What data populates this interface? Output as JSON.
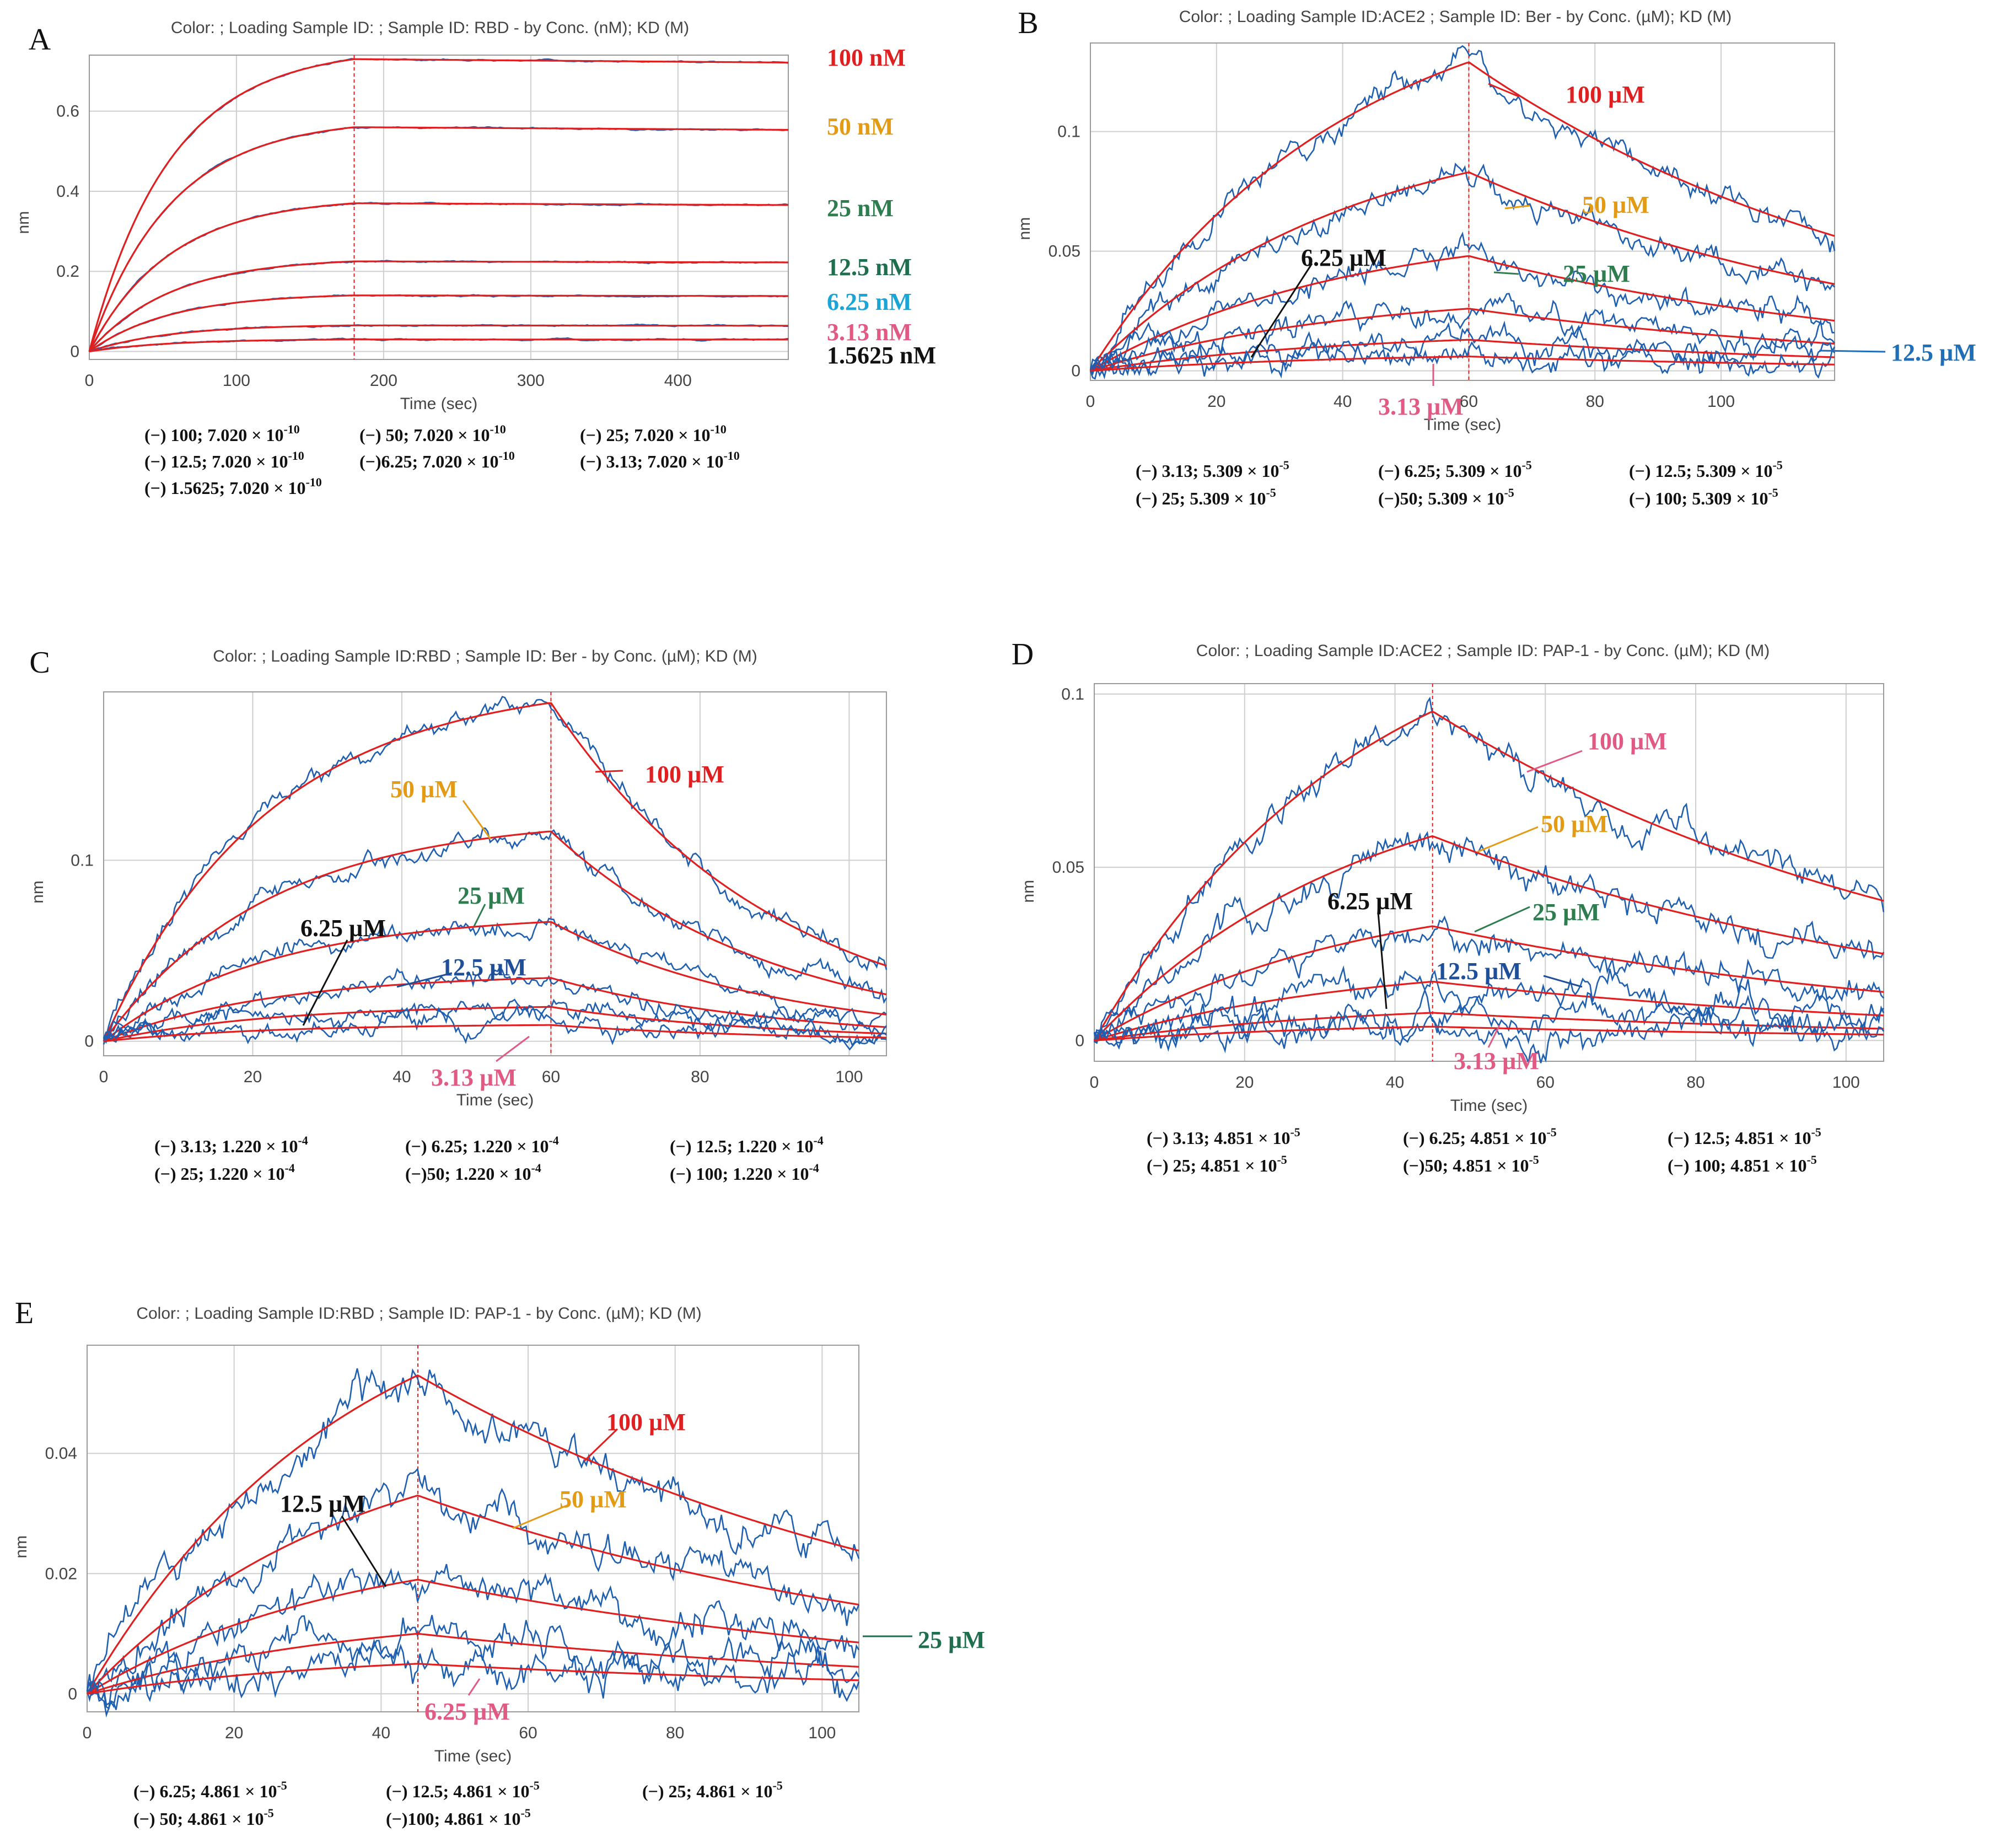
{
  "figure": {
    "colors": {
      "raw_trace": "#1f5fb0",
      "fit_curve": "#e02020",
      "grid": "#cfcfcf"
    },
    "label_colors": {
      "red": "#e02020",
      "orange": "#e39a14",
      "green": "#2e7d4f",
      "teal": "#1f6e4e",
      "cyan": "#1aa5d6",
      "pink": "#e05a83",
      "black": "#111111",
      "navy": "#1f4f99",
      "blue": "#1f6fb8"
    }
  },
  "chart_data": [
    {
      "panel": "A",
      "type": "line",
      "title": "Color: ; Loading Sample ID: ; Sample ID: RBD - by Conc. (nM); KD (M)",
      "xlabel": "Time (sec)",
      "ylabel": "nm",
      "xlim": [
        0,
        475
      ],
      "ylim": [
        -0.02,
        0.74
      ],
      "xticks": [
        "0",
        "100",
        "200",
        "300",
        "400"
      ],
      "xtick_values": [
        0,
        100,
        200,
        300,
        400
      ],
      "yticks": [
        "0",
        "0.2",
        "0.4",
        "0.6"
      ],
      "ytick_values": [
        0,
        0.2,
        0.4,
        0.6
      ],
      "assoc_end": 180,
      "x_end": 475,
      "tau_assoc": 55,
      "tau_dissoc": 25000,
      "noise": 0.002,
      "series": [
        {
          "name": "100 nM",
          "peak": 0.73,
          "label_color": "red"
        },
        {
          "name": "50 nM",
          "peak": 0.56,
          "label_color": "orange"
        },
        {
          "name": "25 nM",
          "peak": 0.37,
          "label_color": "green"
        },
        {
          "name": "12.5 nM",
          "peak": 0.225,
          "label_color": "teal"
        },
        {
          "name": "6.25 nM",
          "peak": 0.14,
          "label_color": "cyan"
        },
        {
          "name": "3.13 nM",
          "peak": 0.065,
          "label_color": "pink"
        },
        {
          "name": "1.5625 nM",
          "peak": 0.03,
          "label_color": "black"
        }
      ],
      "kd_lines": [
        [
          "(−) 100; 7.020 × 10",
          "-10",
          "(−) 50; 7.020 × 10",
          "-10",
          "(−) 25; 7.020 × 10",
          "-10"
        ],
        [
          "(−) 12.5; 7.020 × 10",
          "-10",
          "(−)6.25; 7.020 × 10",
          "-10",
          "(−)  3.13; 7.020 × 10",
          "-10"
        ],
        [
          "(−) 1.5625; 7.020 × 10",
          "-10"
        ]
      ]
    },
    {
      "panel": "B",
      "type": "line",
      "title": "Color: ; Loading Sample ID:ACE2 ; Sample ID: Ber - by Conc. (µM); KD (M)",
      "xlabel": "Time (sec)",
      "ylabel": "nm",
      "xlim": [
        0,
        118
      ],
      "ylim": [
        -0.004,
        0.137
      ],
      "xticks": [
        "0",
        "20",
        "40",
        "60",
        "80",
        "100"
      ],
      "xtick_values": [
        0,
        20,
        40,
        60,
        80,
        100
      ],
      "yticks": [
        "0",
        "0.05",
        "0.1"
      ],
      "ytick_values": [
        0,
        0.05,
        0.1
      ],
      "assoc_end": 60,
      "x_end": 118,
      "tau_assoc": 40,
      "tau_dissoc": 70,
      "noise": 0.006,
      "series": [
        {
          "name": "100 µM",
          "peak": 0.129,
          "label_color": "red"
        },
        {
          "name": "50 µM",
          "peak": 0.083,
          "label_color": "orange"
        },
        {
          "name": "25 µM",
          "peak": 0.048,
          "label_color": "green"
        },
        {
          "name": "12.5 µM",
          "peak": 0.026,
          "label_color": "blue"
        },
        {
          "name": "6.25 µM",
          "peak": 0.013,
          "label_color": "black"
        },
        {
          "name": "3.13 µM",
          "peak": 0.006,
          "label_color": "pink"
        }
      ],
      "kd_lines": [
        [
          "(−) 3.13; 5.309 × 10",
          "-5",
          "(−) 6.25; 5.309 × 10",
          "-5",
          "(−) 12.5; 5.309 × 10",
          "-5"
        ],
        [
          "(−) 25; 5.309 × 10",
          "-5",
          "(−)50; 5.309 × 10",
          "-5",
          "(−) 100; 5.309 × 10",
          "-5"
        ]
      ]
    },
    {
      "panel": "C",
      "type": "line",
      "title": "Color: ; Loading Sample ID:RBD ; Sample ID: Ber - by Conc. (µM); KD (M)",
      "xlabel": "Time (sec)",
      "ylabel": "nm",
      "xlim": [
        0,
        105
      ],
      "ylim": [
        -0.008,
        0.193
      ],
      "xticks": [
        "0",
        "20",
        "40",
        "60",
        "80",
        "100"
      ],
      "xtick_values": [
        0,
        20,
        40,
        60,
        80,
        100
      ],
      "yticks": [
        "0",
        "0.1"
      ],
      "ytick_values": [
        0,
        0.1
      ],
      "assoc_end": 60,
      "x_end": 105,
      "tau_assoc": 22,
      "tau_dissoc": 30,
      "noise": 0.006,
      "series": [
        {
          "name": "100 µM",
          "peak": 0.187,
          "label_color": "red"
        },
        {
          "name": "50 µM",
          "peak": 0.116,
          "label_color": "orange"
        },
        {
          "name": "25 µM",
          "peak": 0.066,
          "label_color": "green"
        },
        {
          "name": "12.5 µM",
          "peak": 0.035,
          "label_color": "navy"
        },
        {
          "name": "6.25 µM",
          "peak": 0.019,
          "label_color": "black"
        },
        {
          "name": "3.13 µM",
          "peak": 0.009,
          "label_color": "pink"
        }
      ],
      "kd_lines": [
        [
          "(−) 3.13; 1.220 × 10",
          "-4",
          "(−) 6.25; 1.220 × 10",
          "-4",
          "(−) 12.5; 1.220 × 10",
          "-4"
        ],
        [
          "(−) 25; 1.220 × 10",
          "-4",
          "(−)50; 1.220 × 10",
          "-4",
          "(−) 100; 1.220 × 10",
          "-4"
        ]
      ]
    },
    {
      "panel": "D",
      "type": "line",
      "title": "Color: ; Loading Sample ID:ACE2 ; Sample ID: PAP-1 - by Conc. (µM); KD (M)",
      "xlabel": "Time (sec)",
      "ylabel": "nm",
      "xlim": [
        0,
        105
      ],
      "ylim": [
        -0.006,
        0.103
      ],
      "xticks": [
        "0",
        "20",
        "40",
        "60",
        "80",
        "100"
      ],
      "xtick_values": [
        0,
        20,
        40,
        60,
        80,
        100
      ],
      "yticks": [
        "0",
        "0.05",
        "0.1"
      ],
      "ytick_values": [
        0,
        0.05,
        0.1
      ],
      "assoc_end": 45,
      "x_end": 105,
      "tau_assoc": 35,
      "tau_dissoc": 70,
      "noise": 0.005,
      "series": [
        {
          "name": "100 µM",
          "peak": 0.095,
          "label_color": "pink"
        },
        {
          "name": "50 µM",
          "peak": 0.059,
          "label_color": "orange"
        },
        {
          "name": "25 µM",
          "peak": 0.033,
          "label_color": "green"
        },
        {
          "name": "12.5 µM",
          "peak": 0.017,
          "label_color": "navy"
        },
        {
          "name": "6.25 µM",
          "peak": 0.008,
          "label_color": "black"
        },
        {
          "name": "3.13 µM",
          "peak": 0.004,
          "label_color": "pink"
        }
      ],
      "kd_lines": [
        [
          "(−) 3.13; 4.851 × 10",
          "-5",
          "(−) 6.25; 4.851 × 10",
          "-5",
          "(−) 12.5; 4.851 × 10",
          "-5"
        ],
        [
          "(−) 25; 4.851 × 10",
          "-5",
          "(−)50; 4.851 × 10",
          "-5",
          "(−) 100; 4.851 × 10",
          "-5"
        ]
      ]
    },
    {
      "panel": "E",
      "type": "line",
      "title": "Color: ; Loading Sample ID:RBD ; Sample ID: PAP-1 - by Conc. (µM); KD (M)",
      "xlabel": "Time (sec)",
      "ylabel": "nm",
      "xlim": [
        0,
        105
      ],
      "ylim": [
        -0.003,
        0.058
      ],
      "xticks": [
        "0",
        "20",
        "40",
        "60",
        "80",
        "100"
      ],
      "xtick_values": [
        0,
        20,
        40,
        60,
        80,
        100
      ],
      "yticks": [
        "0",
        "0.02",
        "0.04"
      ],
      "ytick_values": [
        0,
        0.02,
        0.04
      ],
      "assoc_end": 45,
      "x_end": 105,
      "tau_assoc": 35,
      "tau_dissoc": 75,
      "noise": 0.0035,
      "series": [
        {
          "name": "100 µM",
          "peak": 0.053,
          "label_color": "red"
        },
        {
          "name": "50 µM",
          "peak": 0.033,
          "label_color": "orange"
        },
        {
          "name": "25 µM",
          "peak": 0.019,
          "label_color": "teal"
        },
        {
          "name": "12.5 µM",
          "peak": 0.01,
          "label_color": "black"
        },
        {
          "name": "6.25 µM",
          "peak": 0.005,
          "label_color": "pink"
        }
      ],
      "kd_lines": [
        [
          "(−) 6.25; 4.861 × 10",
          "-5",
          "(−) 12.5; 4.861 × 10",
          "-5",
          "(−) 25; 4.861 × 10",
          "-5"
        ],
        [
          "(−) 50; 4.861 × 10",
          "-5",
          "(−)100; 4.861 × 10",
          "-5"
        ]
      ]
    }
  ]
}
